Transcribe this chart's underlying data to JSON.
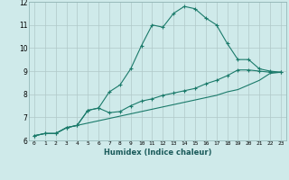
{
  "background_color": "#cfeaea",
  "grid_color": "#b0c8c8",
  "line_color": "#1a7a6a",
  "marker_color": "#1a7a6a",
  "xlabel": "Humidex (Indice chaleur)",
  "ylim": [
    6,
    12
  ],
  "xlim": [
    -0.5,
    23.5
  ],
  "yticks": [
    6,
    7,
    8,
    9,
    10,
    11,
    12
  ],
  "xticks": [
    0,
    1,
    2,
    3,
    4,
    5,
    6,
    7,
    8,
    9,
    10,
    11,
    12,
    13,
    14,
    15,
    16,
    17,
    18,
    19,
    20,
    21,
    22,
    23
  ],
  "series1_x": [
    0,
    1,
    2,
    3,
    4,
    5,
    6,
    7,
    8,
    9,
    10,
    11,
    12,
    13,
    14,
    15,
    16,
    17,
    18,
    19,
    20,
    21,
    22,
    23
  ],
  "series1_y": [
    6.2,
    6.3,
    6.3,
    6.55,
    6.65,
    7.3,
    7.4,
    8.1,
    8.4,
    9.1,
    10.1,
    11.0,
    10.9,
    11.5,
    11.8,
    11.7,
    11.3,
    11.0,
    10.2,
    9.5,
    9.5,
    9.1,
    9.0,
    8.95
  ],
  "series2_x": [
    0,
    1,
    2,
    3,
    4,
    5,
    6,
    7,
    8,
    9,
    10,
    11,
    12,
    13,
    14,
    15,
    16,
    17,
    18,
    19,
    20,
    21,
    22,
    23
  ],
  "series2_y": [
    6.2,
    6.3,
    6.3,
    6.55,
    6.65,
    7.3,
    7.4,
    7.2,
    7.25,
    7.5,
    7.7,
    7.8,
    7.95,
    8.05,
    8.15,
    8.25,
    8.45,
    8.6,
    8.8,
    9.05,
    9.05,
    9.0,
    8.95,
    8.95
  ],
  "series3_x": [
    0,
    1,
    2,
    3,
    4,
    5,
    6,
    7,
    8,
    9,
    10,
    11,
    12,
    13,
    14,
    15,
    16,
    17,
    18,
    19,
    20,
    21,
    22,
    23
  ],
  "series3_y": [
    6.2,
    6.3,
    6.3,
    6.55,
    6.65,
    6.75,
    6.85,
    6.95,
    7.05,
    7.15,
    7.25,
    7.35,
    7.45,
    7.55,
    7.65,
    7.75,
    7.85,
    7.95,
    8.1,
    8.2,
    8.4,
    8.6,
    8.9,
    8.95
  ]
}
